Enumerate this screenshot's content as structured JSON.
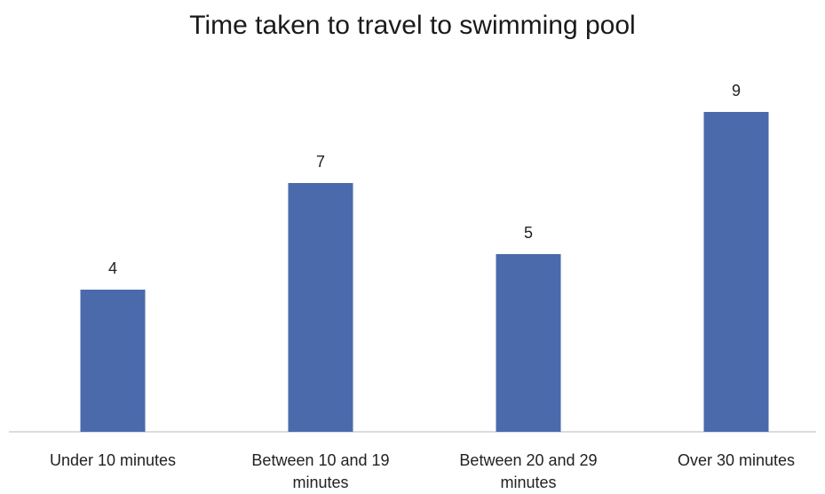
{
  "chart_data": {
    "type": "bar",
    "title": "Time taken to travel to swimming pool",
    "categories": [
      "Under 10 minutes",
      "Between 10 and 19 minutes",
      "Between 20 and 29 minutes",
      "Over 30 minutes"
    ],
    "values": [
      4,
      7,
      5,
      9
    ],
    "data_labels": [
      "4",
      "7",
      "5",
      "9"
    ],
    "ylim": [
      0,
      9
    ],
    "grid": false,
    "bar_color": "#4a6aac"
  }
}
